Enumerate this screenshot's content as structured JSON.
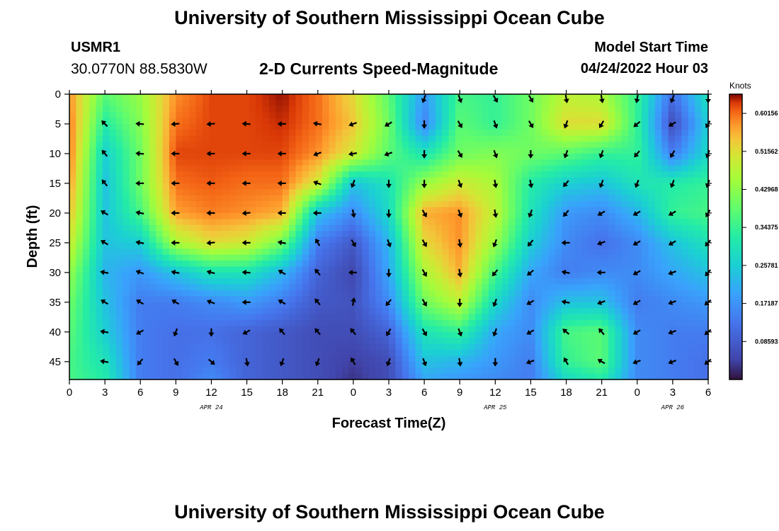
{
  "header": {
    "title": "University of Southern Mississippi Ocean Cube",
    "station_id": "USMR1",
    "coordinates": "30.0770N  88.5830W",
    "subtitle": "2-D Currents Speed-Magnitude",
    "model_start_label": "Model Start Time",
    "model_start_value": "04/24/2022 Hour 03"
  },
  "footer": {
    "title": "University of Southern Mississippi Ocean Cube"
  },
  "chart_data": {
    "type": "heatmap",
    "title": "2-D Currents Speed-Magnitude",
    "xlabel": "Forecast Time(Z)",
    "ylabel": "Depth (ft)",
    "x_hours_range": [
      0,
      54
    ],
    "ylim": [
      0,
      48
    ],
    "x_ticks": [
      {
        "hour": 0,
        "label": "0"
      },
      {
        "hour": 3,
        "label": "3"
      },
      {
        "hour": 6,
        "label": "6"
      },
      {
        "hour": 9,
        "label": "9"
      },
      {
        "hour": 12,
        "label": "12"
      },
      {
        "hour": 15,
        "label": "15"
      },
      {
        "hour": 18,
        "label": "18"
      },
      {
        "hour": 21,
        "label": "21"
      },
      {
        "hour": 24,
        "label": "0"
      },
      {
        "hour": 27,
        "label": "3"
      },
      {
        "hour": 30,
        "label": "6"
      },
      {
        "hour": 33,
        "label": "9"
      },
      {
        "hour": 36,
        "label": "12"
      },
      {
        "hour": 39,
        "label": "15"
      },
      {
        "hour": 42,
        "label": "18"
      },
      {
        "hour": 45,
        "label": "21"
      },
      {
        "hour": 48,
        "label": "0"
      },
      {
        "hour": 51,
        "label": "3"
      },
      {
        "hour": 54,
        "label": "6"
      }
    ],
    "date_labels": [
      {
        "hour": 12,
        "label": "APR 24"
      },
      {
        "hour": 36,
        "label": "APR 25"
      },
      {
        "hour": 51,
        "label": "APR 26"
      }
    ],
    "y_ticks": [
      0,
      5,
      10,
      15,
      20,
      25,
      30,
      35,
      40,
      45
    ],
    "colorbar": {
      "unit": "Knots",
      "range": [
        0.0,
        0.645
      ],
      "tick_values": [
        0.08593,
        0.17187,
        0.25781,
        0.34375,
        0.42968,
        0.51562,
        0.60156
      ],
      "tick_labels": [
        "0.08593",
        "0.17187",
        "0.25781",
        "0.34375",
        "0.42968",
        "0.51562",
        "0.60156"
      ]
    },
    "grid_hours": [
      0,
      3,
      6,
      9,
      12,
      15,
      18,
      21,
      24,
      27,
      30,
      33,
      36,
      39,
      42,
      45,
      48,
      51,
      54
    ],
    "grid_depths": [
      0,
      5,
      10,
      15,
      20,
      25,
      30,
      35,
      40,
      45,
      48
    ],
    "speed_knots": [
      [
        0.58,
        0.38,
        0.44,
        0.58,
        0.62,
        0.62,
        0.64,
        0.6,
        0.52,
        0.38,
        0.18,
        0.36,
        0.34,
        0.4,
        0.48,
        0.46,
        0.34,
        0.12,
        0.3
      ],
      [
        0.6,
        0.32,
        0.42,
        0.6,
        0.62,
        0.62,
        0.63,
        0.6,
        0.54,
        0.4,
        0.15,
        0.38,
        0.34,
        0.4,
        0.52,
        0.52,
        0.34,
        0.06,
        0.26
      ],
      [
        0.6,
        0.26,
        0.4,
        0.62,
        0.62,
        0.62,
        0.62,
        0.58,
        0.5,
        0.38,
        0.3,
        0.4,
        0.42,
        0.4,
        0.38,
        0.34,
        0.34,
        0.14,
        0.28
      ],
      [
        0.58,
        0.24,
        0.4,
        0.6,
        0.61,
        0.6,
        0.6,
        0.5,
        0.24,
        0.3,
        0.44,
        0.5,
        0.46,
        0.32,
        0.26,
        0.24,
        0.3,
        0.32,
        0.34
      ],
      [
        0.55,
        0.24,
        0.36,
        0.57,
        0.59,
        0.58,
        0.56,
        0.24,
        0.16,
        0.28,
        0.56,
        0.58,
        0.48,
        0.3,
        0.18,
        0.16,
        0.22,
        0.34,
        0.36
      ],
      [
        0.5,
        0.24,
        0.26,
        0.46,
        0.52,
        0.5,
        0.4,
        0.14,
        0.08,
        0.22,
        0.52,
        0.58,
        0.44,
        0.26,
        0.16,
        0.12,
        0.16,
        0.24,
        0.3
      ],
      [
        0.44,
        0.22,
        0.18,
        0.24,
        0.3,
        0.3,
        0.22,
        0.1,
        0.05,
        0.2,
        0.46,
        0.56,
        0.36,
        0.2,
        0.14,
        0.16,
        0.16,
        0.2,
        0.24
      ],
      [
        0.4,
        0.24,
        0.14,
        0.14,
        0.16,
        0.18,
        0.14,
        0.08,
        0.07,
        0.16,
        0.4,
        0.48,
        0.28,
        0.16,
        0.24,
        0.24,
        0.14,
        0.16,
        0.18
      ],
      [
        0.38,
        0.26,
        0.14,
        0.12,
        0.12,
        0.1,
        0.08,
        0.06,
        0.06,
        0.1,
        0.3,
        0.34,
        0.2,
        0.16,
        0.36,
        0.38,
        0.16,
        0.14,
        0.14
      ],
      [
        0.36,
        0.3,
        0.14,
        0.12,
        0.14,
        0.1,
        0.08,
        0.06,
        0.04,
        0.06,
        0.24,
        0.22,
        0.18,
        0.14,
        0.34,
        0.38,
        0.16,
        0.14,
        0.12
      ],
      [
        0.36,
        0.32,
        0.14,
        0.12,
        0.16,
        0.1,
        0.08,
        0.06,
        0.03,
        0.06,
        0.2,
        0.18,
        0.16,
        0.14,
        0.28,
        0.32,
        0.16,
        0.14,
        0.12
      ]
    ],
    "arrow_hours": [
      3,
      6,
      9,
      12,
      15,
      18,
      21,
      24,
      27,
      30,
      33,
      36,
      39,
      42,
      45,
      48,
      51,
      54
    ],
    "arrow_depths": [
      0,
      5,
      10,
      15,
      20,
      25,
      30,
      35,
      40,
      45
    ],
    "arrow_direction_deg": [
      [
        null,
        null,
        null,
        null,
        null,
        null,
        null,
        null,
        null,
        200,
        160,
        150,
        150,
        170,
        170,
        190,
        200,
        180
      ],
      [
        315,
        275,
        265,
        265,
        275,
        270,
        280,
        250,
        240,
        180,
        150,
        160,
        150,
        200,
        210,
        230,
        240,
        210
      ],
      [
        320,
        275,
        270,
        270,
        270,
        270,
        250,
        260,
        250,
        180,
        150,
        160,
        180,
        200,
        200,
        220,
        210,
        200
      ],
      [
        320,
        270,
        270,
        270,
        270,
        270,
        290,
        200,
        180,
        180,
        160,
        170,
        170,
        220,
        200,
        200,
        200,
        200
      ],
      [
        300,
        280,
        270,
        270,
        265,
        270,
        270,
        170,
        180,
        150,
        160,
        170,
        200,
        220,
        240,
        240,
        240,
        210
      ],
      [
        300,
        280,
        270,
        265,
        270,
        280,
        330,
        150,
        160,
        150,
        170,
        200,
        220,
        270,
        250,
        240,
        240,
        220
      ],
      [
        280,
        290,
        280,
        285,
        275,
        300,
        320,
        270,
        180,
        150,
        170,
        220,
        230,
        280,
        270,
        240,
        250,
        220
      ],
      [
        300,
        300,
        300,
        290,
        270,
        300,
        320,
        10,
        220,
        150,
        180,
        200,
        240,
        280,
        250,
        240,
        250,
        230
      ],
      [
        280,
        240,
        200,
        180,
        240,
        320,
        320,
        320,
        210,
        150,
        160,
        200,
        240,
        310,
        320,
        240,
        250,
        230
      ],
      [
        280,
        220,
        150,
        130,
        170,
        200,
        200,
        330,
        200,
        160,
        170,
        180,
        250,
        330,
        300,
        250,
        250,
        230
      ]
    ]
  }
}
